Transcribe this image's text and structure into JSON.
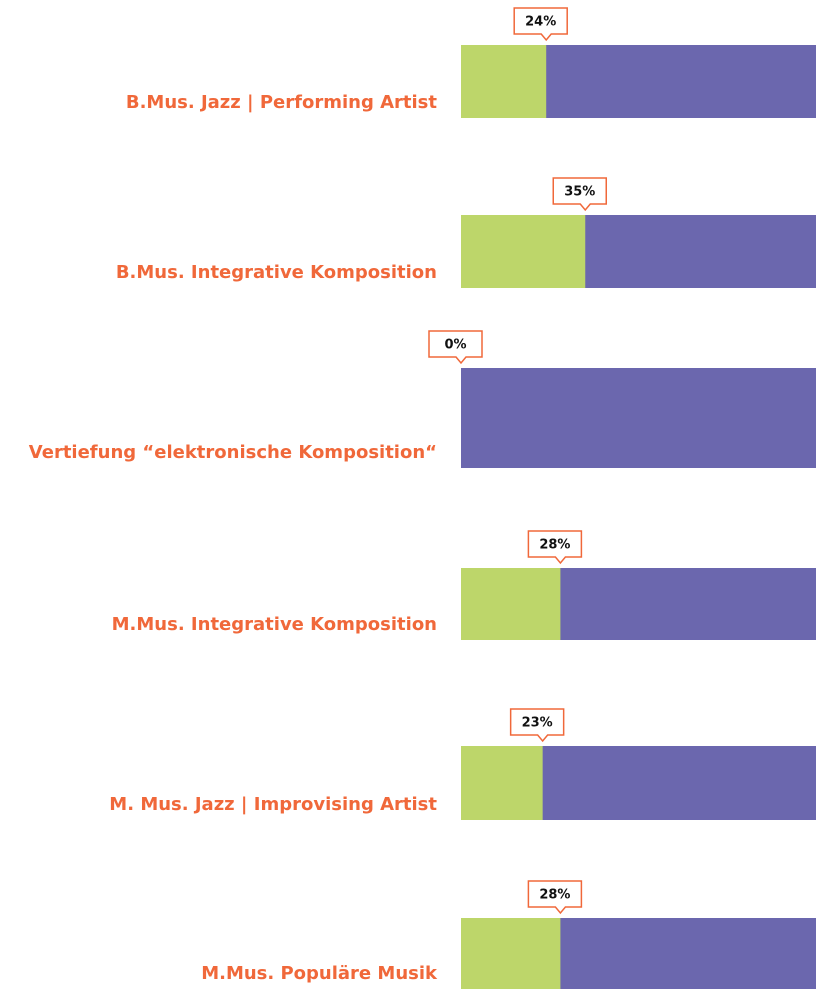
{
  "chart_data": {
    "type": "bar",
    "categories": [
      "B.Mus. Jazz | Performing Artist",
      "B.Mus. Integrative Komposition",
      "Vertiefung “elektronische Komposition“",
      "M.Mus. Integrative Komposition",
      "M. Mus. Jazz | Improvising Artist",
      "M.Mus. Populäre Musik"
    ],
    "values": [
      24,
      35,
      0,
      28,
      23,
      28
    ],
    "value_labels": [
      "24%",
      "35%",
      "0%",
      "28%",
      "23%",
      "28%"
    ],
    "color": "#bdd66a",
    "track_color": "#6b67ae",
    "label_color": "#f0683a",
    "xlim": [
      0,
      100
    ]
  }
}
